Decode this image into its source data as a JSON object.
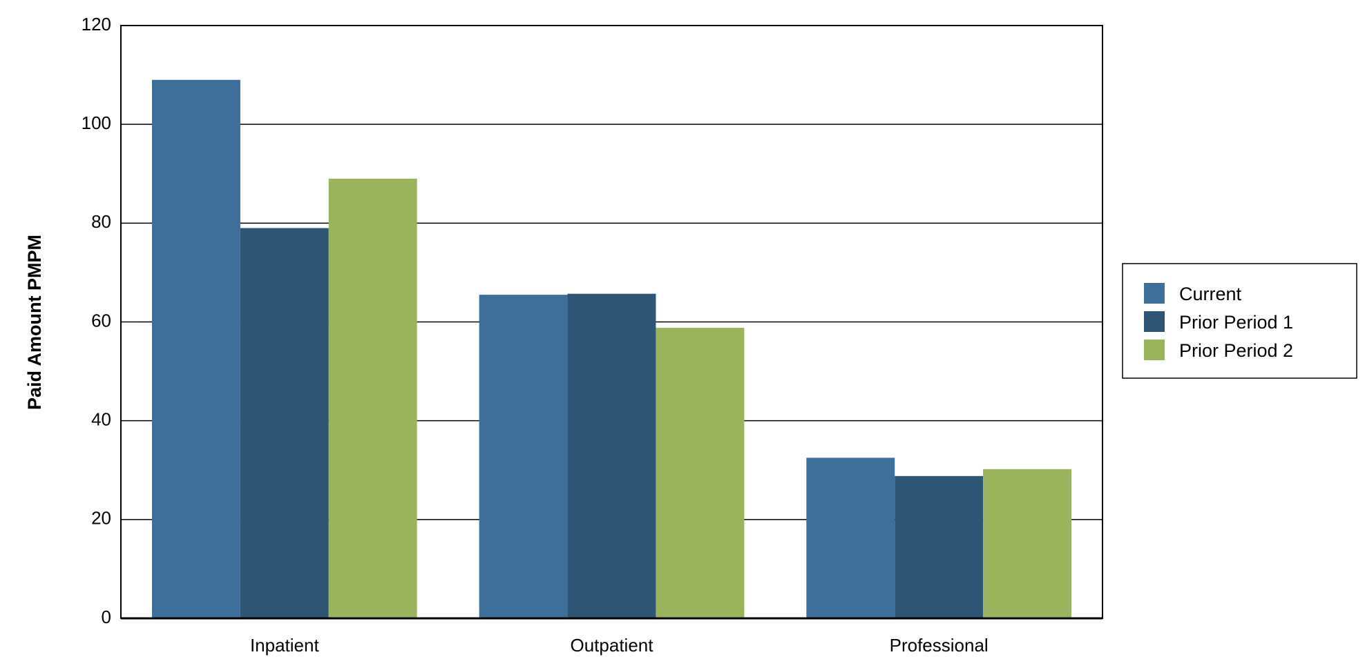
{
  "chart_data": {
    "type": "bar",
    "title": "",
    "xlabel": "",
    "ylabel": "Paid Amount PMPM",
    "ylim": [
      0,
      120
    ],
    "yticks": [
      0,
      20,
      40,
      60,
      80,
      100,
      120
    ],
    "grid": true,
    "legend_position": "right",
    "categories": [
      "Inpatient",
      "Outpatient",
      "Professional"
    ],
    "series": [
      {
        "name": "Current",
        "color": "#3e6f9a",
        "values": [
          109,
          65.5,
          32.5
        ]
      },
      {
        "name": "Prior Period 1",
        "color": "#2f5575",
        "values": [
          79,
          65.7,
          28.8
        ]
      },
      {
        "name": "Prior Period 2",
        "color": "#9ab45e",
        "values": [
          89,
          58.8,
          30.2
        ]
      }
    ]
  }
}
